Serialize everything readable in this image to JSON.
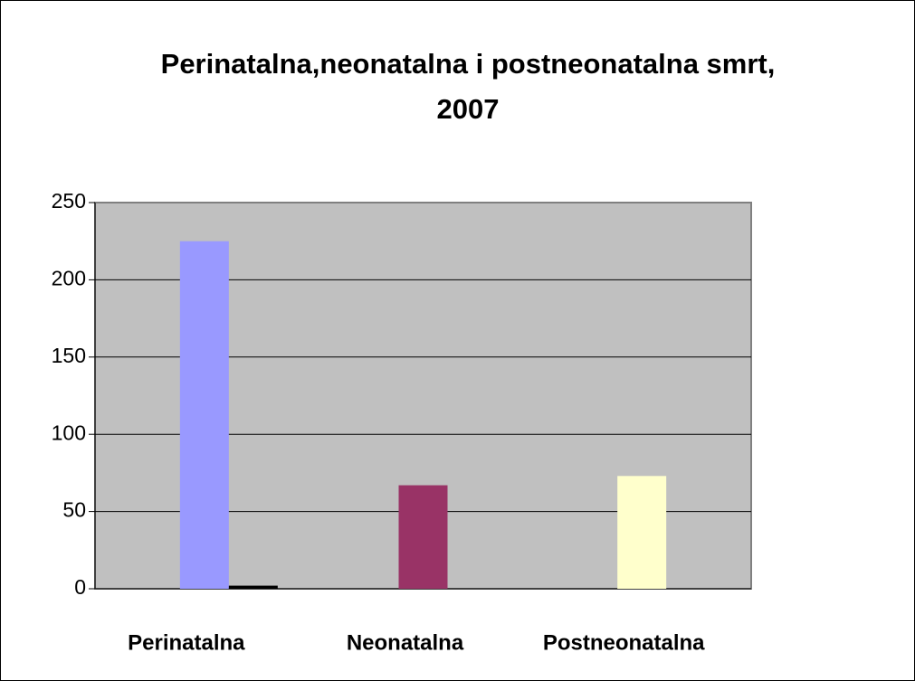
{
  "chart_data": {
    "type": "bar",
    "title": "Perinatalna,neonatalna i postneonatalna smrt, 2007",
    "categories": [
      "Perinatalna",
      "Neonatalna",
      "Postneonatalna"
    ],
    "series": [
      {
        "colors": [
          "#9999ff",
          "#993366",
          "#ffffcc"
        ],
        "values": [
          225,
          67,
          73
        ]
      },
      {
        "color": "#000000",
        "values": [
          2,
          null,
          null
        ]
      }
    ],
    "ylim": [
      0,
      250
    ],
    "yticks": [
      0,
      50,
      100,
      150,
      200,
      250
    ],
    "grid": true
  }
}
